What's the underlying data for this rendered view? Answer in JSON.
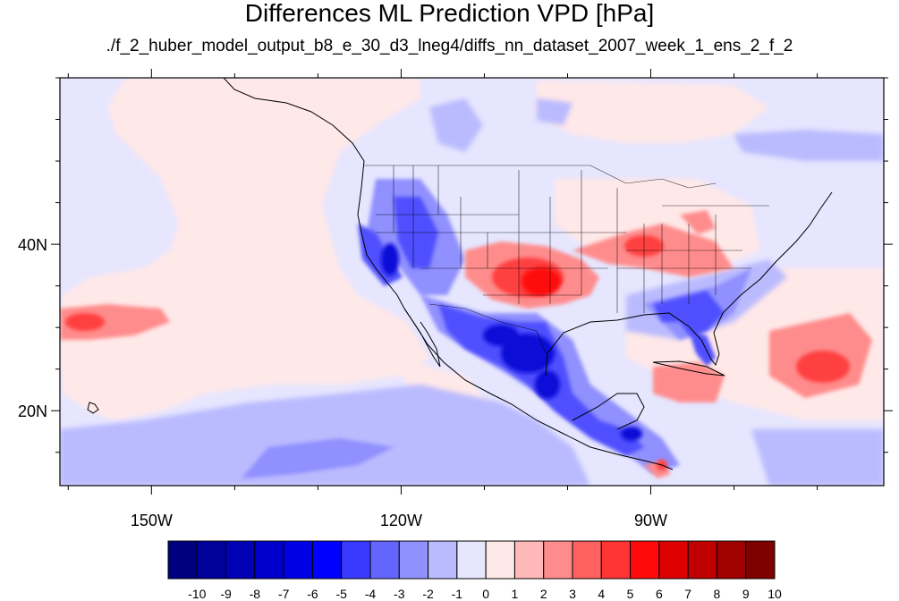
{
  "title": "Differences ML Prediction VPD [hPa]",
  "subtitle": "./f_2_huber_model_output_b8_e_30_d3_lneg4/diffs_nn_dataset_2007_week_1_ens_2_f_2",
  "map": {
    "lon_range": [
      -161,
      -62
    ],
    "lat_range": [
      11,
      60
    ],
    "lon_ticks": [
      {
        "value": -150,
        "label": "150W"
      },
      {
        "value": -120,
        "label": "120W"
      },
      {
        "value": -90,
        "label": "90W"
      }
    ],
    "lat_ticks": [
      {
        "value": 40,
        "label": "40N"
      },
      {
        "value": 20,
        "label": "20N"
      }
    ],
    "lon_minor_step": 10,
    "lat_minor_step": 5
  },
  "colorbar": {
    "labels": [
      "-10",
      "-9",
      "-8",
      "-7",
      "-6",
      "-5",
      "-4",
      "-3",
      "-2",
      "-1",
      "0",
      "1",
      "2",
      "3",
      "4",
      "5",
      "6",
      "7",
      "8",
      "9",
      "10"
    ],
    "colors": [
      "#00007f",
      "#00009a",
      "#0000b4",
      "#0000cc",
      "#0000e4",
      "#0000ff",
      "#3a3aff",
      "#6464ff",
      "#9090ff",
      "#babaff",
      "#e6e6ff",
      "#ffe8e8",
      "#ffb8b8",
      "#ff8c8c",
      "#ff6060",
      "#ff3434",
      "#ff0a0a",
      "#dd0000",
      "#c00000",
      "#a00000",
      "#800000"
    ]
  },
  "colors": {
    "background_field": "#e6e6ff",
    "pale_red": "#ffe8e8",
    "coastline": "#000000"
  }
}
